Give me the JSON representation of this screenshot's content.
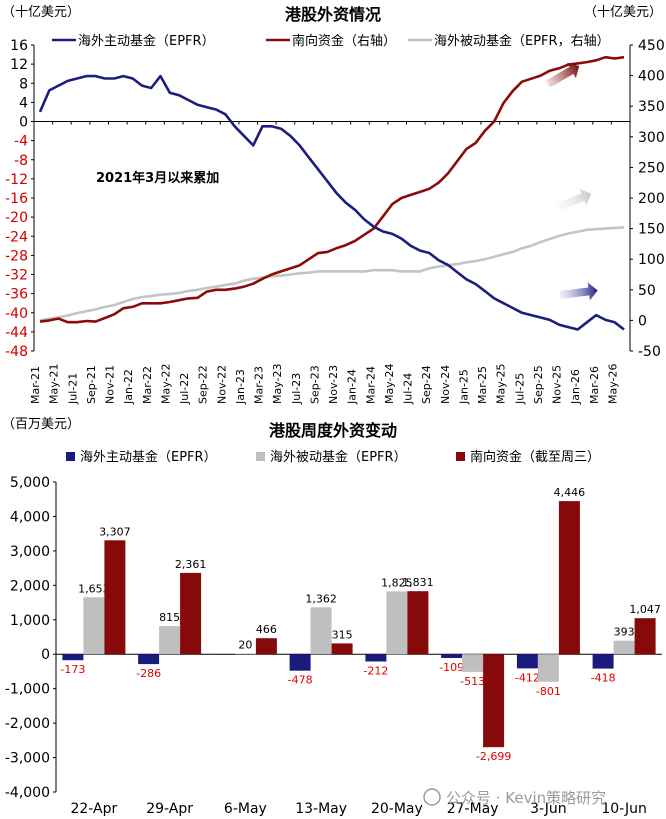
{
  "chart_data": [
    {
      "type": "line",
      "title": "港股外资情况",
      "left_unit": "（十亿美元）",
      "right_unit": "（十亿美元）",
      "annotation": "2021年3月以来累加",
      "legend": [
        "海外主动基金（EPFR）",
        "南向资金（右轴）",
        "海外被动基金（EPFR，右轴）"
      ],
      "colors": {
        "active": "#1c1e7e",
        "southbound": "#8b0a0a",
        "passive": "#c4c4c4"
      },
      "ylim_left": [
        -48,
        16
      ],
      "ylim_right": [
        -50,
        450
      ],
      "left_ticks": [
        16,
        12,
        8,
        4,
        0,
        -4,
        -8,
        -12,
        -16,
        -20,
        -24,
        -28,
        -32,
        -36,
        -40,
        -44,
        -48
      ],
      "right_ticks": [
        450,
        400,
        350,
        300,
        250,
        200,
        150,
        100,
        50,
        0,
        -50
      ],
      "x_ticks": [
        "Mar-21",
        "May-21",
        "Jul-21",
        "Sep-21",
        "Nov-21",
        "Jan-22",
        "Mar-22",
        "May-22",
        "Jul-22",
        "Sep-22",
        "Nov-22",
        "Jan-23",
        "Mar-23",
        "May-23",
        "Jul-23",
        "Sep-23",
        "Nov-23",
        "Jan-24",
        "Mar-24",
        "May-24",
        "Jul-24",
        "Sep-24",
        "Nov-24",
        "Jan-25",
        "Mar-25",
        "May-25",
        "Jul-25",
        "Sep-25",
        "Nov-25",
        "Jan-26",
        "Mar-26",
        "May-26"
      ],
      "series": [
        {
          "name": "海外主动基金（EPFR）",
          "axis": "left",
          "x": [
            0,
            1,
            2,
            3,
            4,
            5,
            6,
            7,
            8,
            9,
            10,
            11,
            12,
            13,
            14,
            15,
            16,
            17,
            18,
            19,
            20,
            21,
            22,
            23,
            24,
            25,
            26,
            27,
            28,
            29,
            30,
            31,
            32,
            33,
            34,
            35,
            36,
            37,
            38,
            39,
            40,
            41,
            42,
            43,
            44,
            45,
            46,
            47,
            48,
            49,
            50,
            51,
            52,
            53,
            54,
            55,
            56,
            57,
            58,
            59,
            60,
            61,
            62,
            63
          ],
          "values": [
            2,
            6.5,
            7.5,
            8.5,
            9,
            9.5,
            9.5,
            9,
            9,
            9.5,
            9,
            7.5,
            7,
            9.5,
            6,
            5.5,
            4.5,
            3.5,
            3,
            2.5,
            1.5,
            -1,
            -3,
            -5,
            -1,
            -1,
            -1.5,
            -3,
            -5,
            -7.5,
            -10,
            -12.5,
            -15,
            -17,
            -18.5,
            -20.5,
            -22,
            -23,
            -23.5,
            -24.5,
            -26,
            -27,
            -27.5,
            -29,
            -30,
            -31.5,
            -33,
            -34,
            -35.5,
            -37,
            -38,
            -39,
            -40,
            -40.5,
            -41,
            -41.5,
            -42.5,
            -43,
            -43.5,
            -42,
            -40.5,
            -41.5,
            -42,
            -43.5
          ]
        },
        {
          "name": "南向资金（右轴）",
          "axis": "right",
          "x": [
            0,
            1,
            2,
            3,
            4,
            5,
            6,
            7,
            8,
            9,
            10,
            11,
            12,
            13,
            14,
            15,
            16,
            17,
            18,
            19,
            20,
            21,
            22,
            23,
            24,
            25,
            26,
            27,
            28,
            29,
            30,
            31,
            32,
            33,
            34,
            35,
            36,
            37,
            38,
            39,
            40,
            41,
            42,
            43,
            44,
            45,
            46,
            47,
            48,
            49,
            50,
            51,
            52,
            53,
            54,
            55,
            56,
            57,
            58,
            59,
            60,
            61,
            62,
            63
          ],
          "values": [
            -2,
            0,
            3,
            -3,
            -3,
            -1,
            -2,
            4,
            10,
            20,
            22,
            28,
            28,
            28,
            30,
            33,
            36,
            37,
            47,
            50,
            50,
            52,
            55,
            60,
            68,
            75,
            80,
            85,
            90,
            100,
            110,
            112,
            118,
            123,
            130,
            140,
            150,
            170,
            190,
            200,
            205,
            210,
            215,
            225,
            240,
            260,
            280,
            290,
            310,
            325,
            355,
            375,
            390,
            395,
            400,
            408,
            412,
            418,
            420,
            422,
            425,
            430,
            428,
            430
          ]
        },
        {
          "name": "海外被动基金（EPFR，右轴）",
          "axis": "right",
          "x": [
            0,
            1,
            2,
            3,
            4,
            5,
            6,
            7,
            8,
            9,
            10,
            11,
            12,
            13,
            14,
            15,
            16,
            17,
            18,
            19,
            20,
            21,
            22,
            23,
            24,
            25,
            26,
            27,
            28,
            29,
            30,
            31,
            32,
            33,
            34,
            35,
            36,
            37,
            38,
            39,
            40,
            41,
            42,
            43,
            44,
            45,
            46,
            47,
            48,
            49,
            50,
            51,
            52,
            53,
            54,
            55,
            56,
            57,
            58,
            59,
            60,
            61,
            62,
            63
          ],
          "values": [
            0,
            3,
            5,
            8,
            12,
            15,
            18,
            22,
            25,
            30,
            35,
            38,
            40,
            42,
            43,
            45,
            48,
            50,
            53,
            55,
            58,
            60,
            65,
            68,
            70,
            72,
            73,
            75,
            77,
            78,
            80,
            80,
            80,
            80,
            80,
            80,
            82,
            82,
            82,
            80,
            80,
            80,
            85,
            88,
            90,
            92,
            95,
            97,
            100,
            104,
            108,
            112,
            118,
            122,
            128,
            133,
            138,
            142,
            145,
            148,
            149,
            150,
            151,
            152
          ]
        }
      ]
    },
    {
      "type": "bar",
      "title": "港股周度外资变动",
      "unit": "（百万美元）",
      "categories": [
        "22-Apr",
        "29-Apr",
        "6-May",
        "13-May",
        "20-May",
        "27-May",
        "3-Jun",
        "10-Jun"
      ],
      "ylim": [
        -4000,
        5000
      ],
      "y_ticks": [
        "5,000",
        "4,000",
        "3,000",
        "2,000",
        "1,000",
        "0",
        "-1,000",
        "-2,000",
        "-3,000",
        "-4,000"
      ],
      "y_tick_values": [
        5000,
        4000,
        3000,
        2000,
        1000,
        0,
        -1000,
        -2000,
        -3000,
        -4000
      ],
      "colors": {
        "active": "#1b1b7d",
        "passive": "#bfbfbf",
        "southbound": "#870a0a"
      },
      "series": [
        {
          "name": "海外主动基金（EPFR）",
          "values": [
            -173,
            -286,
            0,
            -478,
            -212,
            -109,
            -412,
            -418
          ],
          "labels": [
            "-173",
            "-286",
            "",
            "-478",
            "-212",
            "-109",
            "-412",
            "-418"
          ]
        },
        {
          "name": "海外被动基金（EPFR）",
          "values": [
            1653,
            815,
            20,
            1362,
            1825,
            -513,
            -801,
            393
          ],
          "labels": [
            "1,653",
            "815",
            "20",
            "1,362",
            "1,825",
            "-513",
            "-801",
            "393"
          ]
        },
        {
          "name": "南向资金（截至周三）",
          "values": [
            3307,
            2361,
            466,
            315,
            1831,
            -2699,
            4446,
            1047
          ],
          "labels": [
            "3,307",
            "2,361",
            "466",
            "315",
            "1,831",
            "-2,699",
            "4,446",
            "1,047"
          ]
        }
      ]
    }
  ],
  "watermark": "公众号 · Kevin策略研究"
}
